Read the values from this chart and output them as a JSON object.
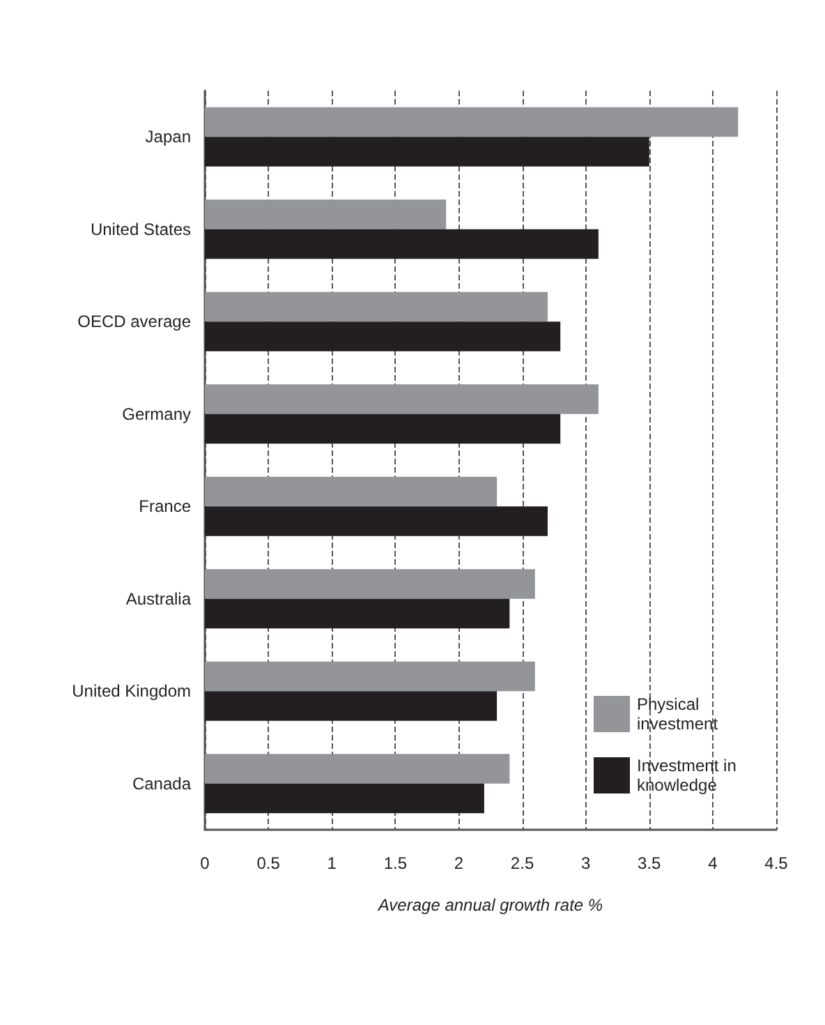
{
  "chart_data": {
    "type": "bar",
    "orientation": "horizontal",
    "xlabel": "Average annual growth rate %",
    "categories": [
      "Japan",
      "United States",
      "OECD average",
      "Germany",
      "France",
      "Australia",
      "United Kingdom",
      "Canada"
    ],
    "series": [
      {
        "name": "Physical investment",
        "color": "#939598",
        "values": [
          4.2,
          1.9,
          2.7,
          3.1,
          2.3,
          2.6,
          2.6,
          2.4
        ]
      },
      {
        "name": "Investment in knowledge",
        "color": "#231f20",
        "values": [
          3.5,
          3.1,
          2.8,
          2.8,
          2.7,
          2.4,
          2.3,
          2.2
        ]
      }
    ],
    "xlim": [
      0,
      4.5
    ],
    "xticks": [
      0,
      0.5,
      1,
      1.5,
      2,
      2.5,
      3,
      3.5,
      4,
      4.5
    ],
    "grid": "x",
    "legend": "bottom right"
  }
}
